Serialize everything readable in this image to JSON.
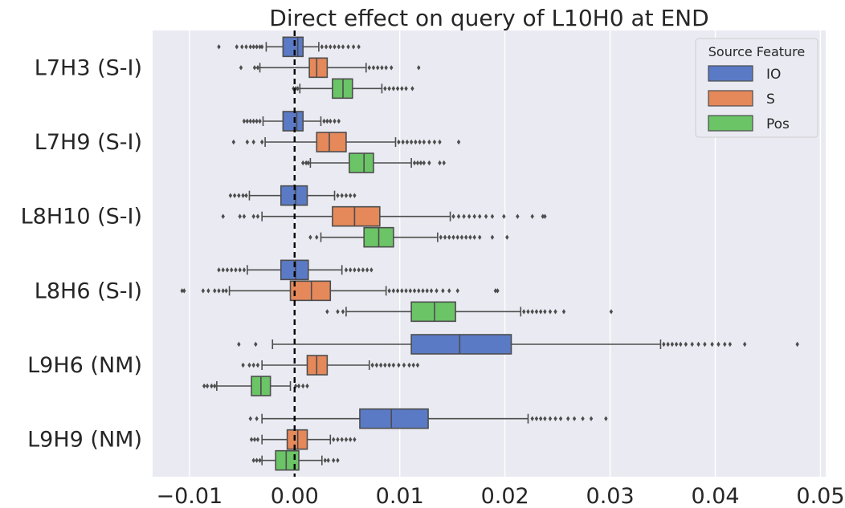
{
  "chart_data": {
    "type": "boxplot",
    "orientation": "horizontal",
    "title": "Direct effect on query of L10H0 at END",
    "xlabel": "",
    "ylabel": "",
    "xlim": [
      -0.0135,
      0.0505
    ],
    "x_ticks": [
      {
        "value": -0.01,
        "label": "−0.01"
      },
      {
        "value": 0.0,
        "label": "0.00"
      },
      {
        "value": 0.01,
        "label": "0.01"
      },
      {
        "value": 0.02,
        "label": "0.02"
      },
      {
        "value": 0.03,
        "label": "0.03"
      },
      {
        "value": 0.04,
        "label": "0.04"
      },
      {
        "value": 0.05,
        "label": "0.05"
      }
    ],
    "grid": true,
    "reference_line": {
      "x": 0.0,
      "style": "dashed",
      "color": "#000000"
    },
    "legend": {
      "title": "Source Feature",
      "position": "top-right",
      "entries": [
        {
          "name": "IO",
          "color": "#5a7ac6"
        },
        {
          "name": "S",
          "color": "#e5885a"
        },
        {
          "name": "Pos",
          "color": "#6bc466"
        }
      ]
    },
    "categories": [
      "L7H3 (S-I)",
      "L7H9 (S-I)",
      "L8H10 (S-I)",
      "L8H6 (S-I)",
      "L9H6 (NM)",
      "L9H9 (NM)"
    ],
    "series": [
      {
        "name": "IO",
        "boxes": [
          {
            "whislo": -0.0027,
            "q1": -0.0011,
            "med": 0.0003,
            "q3": 0.0008,
            "whishi": 0.0023,
            "fliers": [
              -0.0072,
              -0.0055,
              -0.005,
              -0.0046,
              -0.0042,
              -0.0039,
              -0.0036,
              -0.0033,
              -0.0031,
              0.0026,
              0.003,
              0.0034,
              0.0038,
              0.0042,
              0.0046,
              0.0051,
              0.0056,
              0.0061
            ]
          },
          {
            "whislo": -0.003,
            "q1": -0.0011,
            "med": 0.0002,
            "q3": 0.0008,
            "whishi": 0.0025,
            "fliers": [
              -0.0048,
              -0.0045,
              -0.0042,
              -0.0039,
              -0.0036,
              -0.0033,
              0.0028,
              0.0031,
              0.0034,
              0.0038,
              0.0042
            ]
          },
          {
            "whislo": -0.0043,
            "q1": -0.0013,
            "med": 0.0001,
            "q3": 0.0012,
            "whishi": 0.0038,
            "fliers": [
              -0.0061,
              -0.0057,
              -0.0053,
              -0.0049,
              -0.0046,
              0.0041,
              0.0045,
              0.0049,
              0.0053,
              0.0057
            ]
          },
          {
            "whislo": -0.0045,
            "q1": -0.0013,
            "med": 0.0001,
            "q3": 0.0013,
            "whishi": 0.0045,
            "fliers": [
              -0.0072,
              -0.0068,
              -0.0064,
              -0.006,
              -0.0056,
              -0.0052,
              -0.0048,
              0.0049,
              0.0053,
              0.0057,
              0.0061,
              0.0065,
              0.0069,
              0.0073
            ]
          },
          {
            "whislo": -0.0021,
            "q1": 0.0111,
            "med": 0.0157,
            "q3": 0.0206,
            "whishi": 0.0348,
            "fliers": [
              -0.0053,
              -0.0037,
              0.0351,
              0.0355,
              0.0359,
              0.0363,
              0.0367,
              0.0372,
              0.0378,
              0.0384,
              0.039,
              0.0397,
              0.0403,
              0.0409,
              0.0414,
              0.0428,
              0.0478
            ]
          },
          {
            "whislo": -0.0031,
            "q1": 0.0062,
            "med": 0.0092,
            "q3": 0.0127,
            "whishi": 0.0222,
            "fliers": [
              -0.0042,
              -0.0036,
              0.0226,
              0.023,
              0.0234,
              0.0238,
              0.0243,
              0.0248,
              0.0253,
              0.026,
              0.0266,
              0.0274,
              0.0282,
              0.0296
            ]
          }
        ]
      },
      {
        "name": "S",
        "boxes": [
          {
            "whislo": -0.0033,
            "q1": 0.0014,
            "med": 0.0021,
            "q3": 0.0031,
            "whishi": 0.0068,
            "fliers": [
              -0.0051,
              -0.0038,
              -0.0035,
              0.0071,
              0.0075,
              0.0079,
              0.0083,
              0.0087,
              0.0092,
              0.0118
            ]
          },
          {
            "whislo": -0.0028,
            "q1": 0.0021,
            "med": 0.0033,
            "q3": 0.0049,
            "whishi": 0.0096,
            "fliers": [
              -0.0058,
              -0.0045,
              -0.0039,
              -0.0031,
              0.0099,
              0.0103,
              0.0107,
              0.0111,
              0.0115,
              0.0119,
              0.0123,
              0.0128,
              0.0133,
              0.0138,
              0.0156
            ]
          },
          {
            "whislo": -0.0031,
            "q1": 0.0036,
            "med": 0.0057,
            "q3": 0.0081,
            "whishi": 0.0148,
            "fliers": [
              -0.0068,
              -0.0052,
              -0.0048,
              -0.0039,
              -0.0035,
              0.0151,
              0.0156,
              0.0161,
              0.0166,
              0.0171,
              0.0176,
              0.0182,
              0.0188,
              0.0199,
              0.0212,
              0.0226,
              0.0236,
              0.0238
            ]
          },
          {
            "whislo": -0.0062,
            "q1": -0.0004,
            "med": 0.0016,
            "q3": 0.0034,
            "whishi": 0.0087,
            "fliers": [
              -0.0107,
              -0.0105,
              -0.0087,
              -0.0082,
              -0.0076,
              -0.0072,
              -0.0068,
              -0.0065,
              0.009,
              0.0094,
              0.0098,
              0.0102,
              0.0106,
              0.011,
              0.0114,
              0.0118,
              0.0122,
              0.0126,
              0.013,
              0.0135,
              0.0141,
              0.0147,
              0.0155,
              0.0191,
              0.0193
            ]
          },
          {
            "whislo": -0.0031,
            "q1": 0.0012,
            "med": 0.0021,
            "q3": 0.0031,
            "whishi": 0.0071,
            "fliers": [
              -0.0049,
              -0.0043,
              -0.0039,
              -0.0035,
              0.0074,
              0.0078,
              0.0082,
              0.0086,
              0.009,
              0.0094,
              0.0099,
              0.0104,
              0.0109,
              0.0113,
              0.0117
            ]
          },
          {
            "whislo": -0.0031,
            "q1": -0.0007,
            "med": 0.0003,
            "q3": 0.0012,
            "whishi": 0.0034,
            "fliers": [
              -0.0041,
              -0.0038,
              -0.0035,
              0.0037,
              0.0041,
              0.0045,
              0.0049,
              0.0053,
              0.0057
            ]
          }
        ]
      },
      {
        "name": "Pos",
        "boxes": [
          {
            "whislo": 0.0005,
            "q1": 0.0036,
            "med": 0.0046,
            "q3": 0.0055,
            "whishi": 0.0083,
            "fliers": [
              -0.0001,
              0.0001,
              0.0003,
              0.0086,
              0.009,
              0.0094,
              0.0098,
              0.0102,
              0.0106,
              0.0112
            ]
          },
          {
            "whislo": 0.0015,
            "q1": 0.0052,
            "med": 0.0066,
            "q3": 0.0075,
            "whishi": 0.0111,
            "fliers": [
              0.0008,
              0.0011,
              0.0013,
              0.0114,
              0.0117,
              0.012,
              0.0123,
              0.0128,
              0.0138,
              0.0142
            ]
          },
          {
            "whislo": 0.0025,
            "q1": 0.0066,
            "med": 0.008,
            "q3": 0.0094,
            "whishi": 0.0136,
            "fliers": [
              0.0015,
              0.0021,
              0.0139,
              0.0143,
              0.0147,
              0.0151,
              0.0155,
              0.0159,
              0.0163,
              0.0167,
              0.0171,
              0.0176,
              0.0188,
              0.0202
            ]
          },
          {
            "whislo": 0.0049,
            "q1": 0.0111,
            "med": 0.0133,
            "q3": 0.0153,
            "whishi": 0.0215,
            "fliers": [
              0.0031,
              0.0041,
              0.0046,
              0.0218,
              0.0222,
              0.0226,
              0.023,
              0.0234,
              0.0238,
              0.0243,
              0.0248,
              0.0256,
              0.0301
            ]
          },
          {
            "whislo": -0.0074,
            "q1": -0.0041,
            "med": -0.0032,
            "q3": -0.0023,
            "whishi": -0.0004,
            "fliers": [
              -0.0086,
              -0.0083,
              -0.0079,
              -0.0076,
              0.0001,
              0.0004,
              0.0008,
              0.0012
            ]
          },
          {
            "whislo": -0.0031,
            "q1": -0.0018,
            "med": -0.0008,
            "q3": 0.0004,
            "whishi": 0.0026,
            "fliers": [
              -0.0039,
              -0.0036,
              -0.0033,
              0.0029,
              0.0032,
              0.0037,
              0.0041
            ]
          }
        ]
      }
    ],
    "colors": {
      "background": "#eaeaf2",
      "grid": "#ffffff",
      "whisker": "#4d4d4d",
      "reference": "#000000"
    }
  }
}
